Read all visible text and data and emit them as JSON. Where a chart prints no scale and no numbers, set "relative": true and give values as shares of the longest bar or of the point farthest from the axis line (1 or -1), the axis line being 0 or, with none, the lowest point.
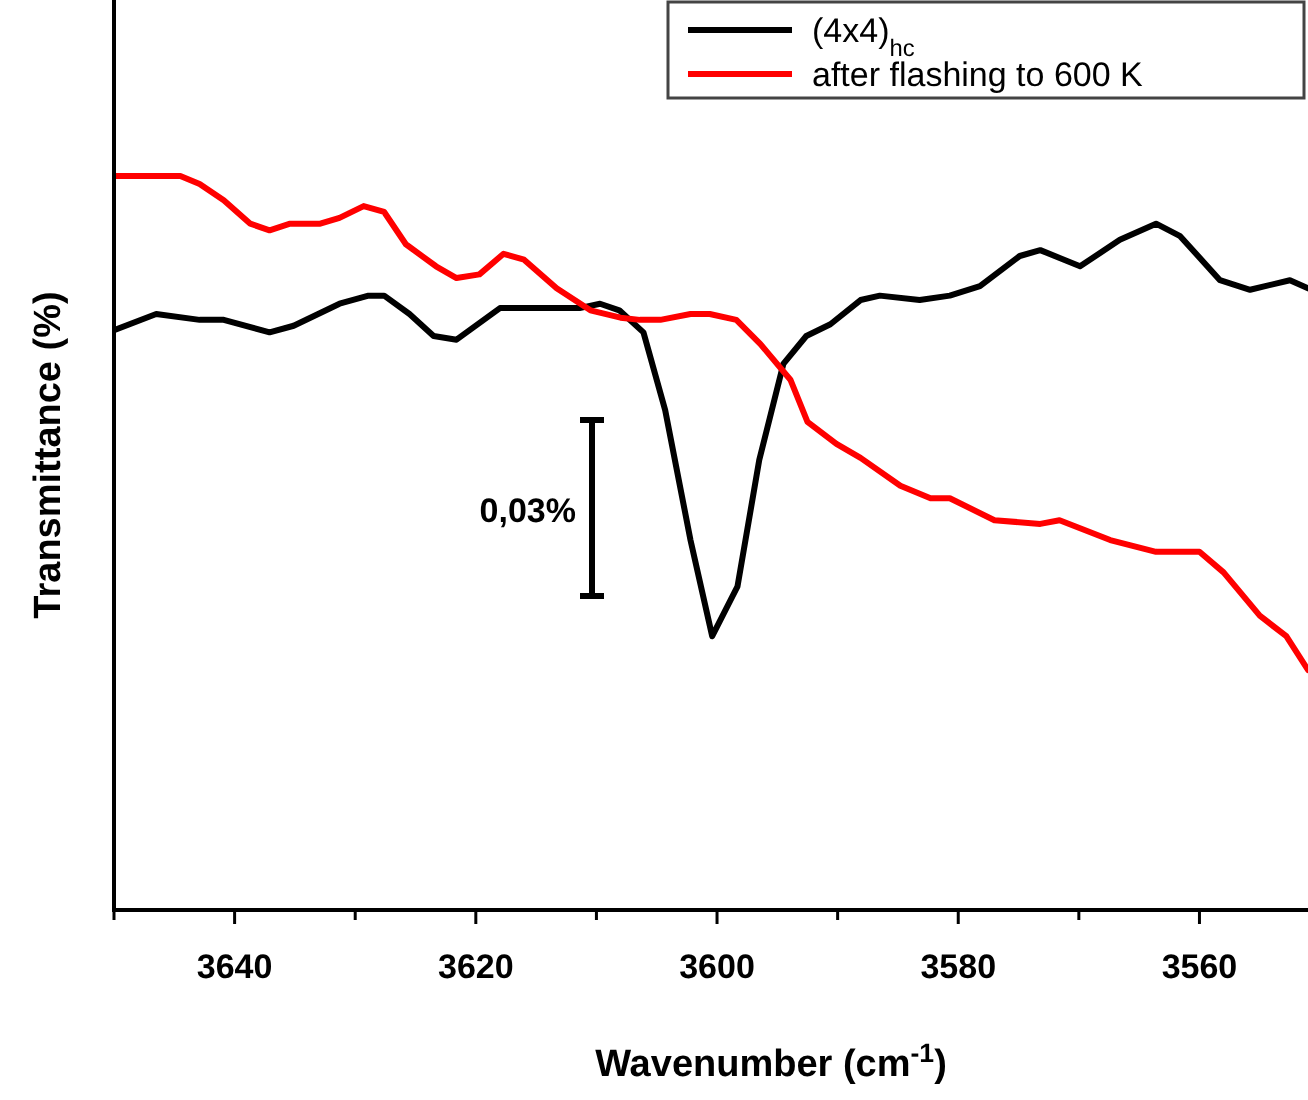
{
  "chart_data": {
    "type": "line",
    "relative": true,
    "xlabel": "Wavenumber (cm$^{-1}$)",
    "ylabel": "Transmittance (%)",
    "xlim": [
      3650,
      3551
    ],
    "xticks": [
      {
        "value": 3650,
        "label": null
      },
      3640,
      {
        "value": 3630,
        "label": null
      },
      3620,
      {
        "value": 3610,
        "label": null
      },
      3600,
      {
        "value": 3590,
        "label": null
      },
      3580,
      {
        "value": 3570,
        "label": null
      },
      3560
    ],
    "legend": "top right",
    "line_style": "solid",
    "annotations": [
      "0,03%"
    ],
    "series": [
      {
        "name": "(4x4)$_{hc}$",
        "color": "#000000",
        "x": [
          3650.0,
          3646.5,
          3642.9,
          3640.9,
          3637.1,
          3635.1,
          3631.3,
          3628.9,
          3627.6,
          3625.5,
          3623.5,
          3621.6,
          3618.0,
          3611.4,
          3609.7,
          3608.1,
          3606.1,
          3604.3,
          3602.2,
          3600.4,
          3598.3,
          3596.5,
          3594.5,
          3592.6,
          3590.6,
          3588.1,
          3586.5,
          3583.2,
          3580.7,
          3578.2,
          3574.9,
          3573.2,
          3569.9,
          3566.6,
          3563.6,
          3561.6,
          3558.3,
          3555.8,
          3552.5,
          3551.0
        ],
        "values": [
          0.79,
          0.812,
          0.804,
          0.804,
          0.787,
          0.796,
          0.826,
          0.837,
          0.837,
          0.812,
          0.782,
          0.777,
          0.82,
          0.82,
          0.826,
          0.817,
          0.787,
          0.681,
          0.504,
          0.373,
          0.441,
          0.613,
          0.744,
          0.782,
          0.798,
          0.831,
          0.837,
          0.831,
          0.837,
          0.85,
          0.891,
          0.899,
          0.877,
          0.913,
          0.935,
          0.918,
          0.858,
          0.845,
          0.858,
          0.847
        ]
      },
      {
        "name": "after flashing to 600 K",
        "color": "#ff0000",
        "x": [
          3650.0,
          3644.5,
          3642.9,
          3640.9,
          3638.7,
          3637.1,
          3635.4,
          3632.9,
          3631.3,
          3629.3,
          3627.6,
          3625.8,
          3623.3,
          3621.6,
          3619.7,
          3617.7,
          3616.0,
          3613.3,
          3610.5,
          3608.0,
          3606.4,
          3604.7,
          3602.2,
          3600.6,
          3598.4,
          3596.4,
          3593.9,
          3592.5,
          3590.1,
          3588.1,
          3584.8,
          3582.3,
          3580.7,
          3577.0,
          3573.2,
          3571.6,
          3567.4,
          3563.6,
          3560.0,
          3558.0,
          3555.0,
          3552.8,
          3551.0
        ],
        "values": [
          1.0,
          1.0,
          0.989,
          0.967,
          0.935,
          0.926,
          0.935,
          0.935,
          0.943,
          0.959,
          0.951,
          0.907,
          0.877,
          0.861,
          0.866,
          0.894,
          0.886,
          0.847,
          0.817,
          0.807,
          0.804,
          0.804,
          0.812,
          0.812,
          0.804,
          0.771,
          0.722,
          0.665,
          0.635,
          0.616,
          0.578,
          0.561,
          0.561,
          0.531,
          0.526,
          0.531,
          0.504,
          0.488,
          0.488,
          0.46,
          0.401,
          0.373,
          0.327
        ]
      }
    ]
  }
}
